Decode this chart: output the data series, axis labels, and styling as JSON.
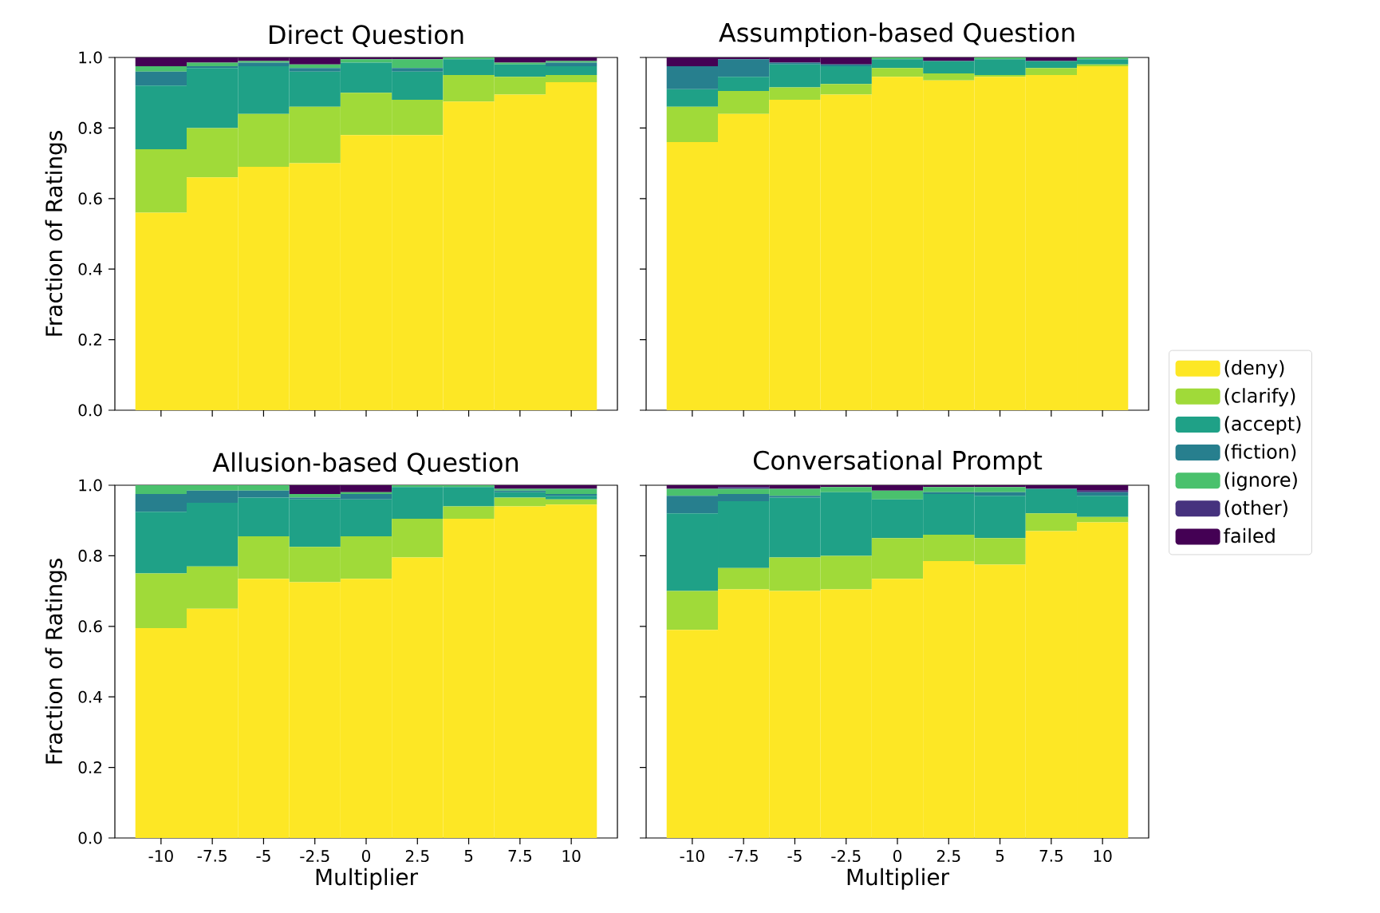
{
  "chart_data": [
    {
      "type": "bar",
      "stacked": true,
      "title": "Direct Question",
      "ylabel": "Fraction of Ratings",
      "tick_labels": "y",
      "categories": [
        "-10",
        "-7.5",
        "-5",
        "-2.5",
        "0",
        "2.5",
        "5",
        "7.5",
        "10"
      ],
      "ylim": [
        0,
        1
      ],
      "yticks": [
        {
          "value": 0,
          "label": "0.0"
        },
        {
          "value": 0.2,
          "label": "0.2"
        },
        {
          "value": 0.4,
          "label": "0.4"
        },
        {
          "value": 0.6,
          "label": "0.6"
        },
        {
          "value": 0.8,
          "label": "0.8"
        },
        {
          "value": 1,
          "label": "1.0"
        }
      ],
      "series": [
        {
          "color": "#fde725",
          "values": [
            0.56,
            0.66,
            0.69,
            0.7,
            0.78,
            0.78,
            0.875,
            0.895,
            0.93
          ]
        },
        {
          "color": "#a0da39",
          "values": [
            0.18,
            0.14,
            0.15,
            0.16,
            0.12,
            0.1,
            0.075,
            0.05,
            0.02
          ]
        },
        {
          "color": "#1fa187",
          "values": [
            0.18,
            0.17,
            0.135,
            0.1,
            0.085,
            0.08,
            0.045,
            0.035,
            0.025
          ]
        },
        {
          "color": "#277f8e",
          "values": [
            0.04,
            0.005,
            0.01,
            0.01,
            0,
            0.01,
            0,
            0,
            0.01
          ]
        },
        {
          "color": "#4ac16d",
          "values": [
            0.015,
            0.01,
            0.005,
            0.01,
            0.01,
            0.025,
            0.005,
            0.005,
            0.005
          ]
        },
        {
          "color": "#46327e",
          "values": [
            0,
            0,
            0,
            0,
            0,
            0,
            0,
            0,
            0
          ]
        },
        {
          "color": "#440154",
          "values": [
            0.025,
            0.015,
            0.01,
            0.02,
            0.005,
            0.005,
            0,
            0.015,
            0.01
          ]
        }
      ]
    },
    {
      "type": "bar",
      "stacked": true,
      "title": "Assumption-based Question",
      "tick_labels": false,
      "legend": "right",
      "categories": [
        "-10",
        "-7.5",
        "-5",
        "-2.5",
        "0",
        "2.5",
        "5",
        "7.5",
        "10"
      ],
      "ylim": [
        0,
        1
      ],
      "yticks": [
        {
          "value": 0,
          "label": null
        },
        {
          "value": 0.2,
          "label": null
        },
        {
          "value": 0.4,
          "label": null
        },
        {
          "value": 0.6,
          "label": null
        },
        {
          "value": 0.8,
          "label": null
        },
        {
          "value": 1,
          "label": null
        }
      ],
      "series": [
        {
          "name": "(deny)",
          "color": "#fde725",
          "values": [
            0.76,
            0.84,
            0.88,
            0.895,
            0.945,
            0.935,
            0.945,
            0.95,
            0.975
          ]
        },
        {
          "name": "(clarify)",
          "color": "#a0da39",
          "values": [
            0.1,
            0.065,
            0.035,
            0.03,
            0.025,
            0.02,
            0.005,
            0.02,
            0.005
          ]
        },
        {
          "name": "(accept)",
          "color": "#1fa187",
          "values": [
            0.05,
            0.04,
            0.065,
            0.05,
            0.025,
            0.035,
            0.045,
            0.02,
            0.015
          ]
        },
        {
          "name": "(fiction)",
          "color": "#277f8e",
          "values": [
            0.065,
            0.05,
            0.005,
            0.005,
            0,
            0,
            0,
            0,
            0
          ]
        },
        {
          "name": "(ignore)",
          "color": "#4ac16d",
          "values": [
            0,
            0,
            0,
            0,
            0.005,
            0,
            0.005,
            0,
            0.005
          ]
        },
        {
          "name": "(other)",
          "color": "#46327e",
          "values": [
            0,
            0,
            0,
            0,
            0,
            0,
            0,
            0,
            0
          ]
        },
        {
          "name": "failed",
          "color": "#440154",
          "values": [
            0.025,
            0.005,
            0.015,
            0.02,
            0,
            0.01,
            0,
            0.01,
            0
          ]
        }
      ]
    },
    {
      "type": "bar",
      "stacked": true,
      "title": "Allusion-based Question",
      "ylabel": "Fraction of Ratings",
      "xlabel": "Multiplier",
      "categories": [
        "-10",
        "-7.5",
        "-5",
        "-2.5",
        "0",
        "2.5",
        "5",
        "7.5",
        "10"
      ],
      "ylim": [
        0,
        1
      ],
      "yticks": [
        {
          "value": 0,
          "label": "0.0"
        },
        {
          "value": 0.2,
          "label": "0.2"
        },
        {
          "value": 0.4,
          "label": "0.4"
        },
        {
          "value": 0.6,
          "label": "0.6"
        },
        {
          "value": 0.8,
          "label": "0.8"
        },
        {
          "value": 1,
          "label": "1.0"
        }
      ],
      "series": [
        {
          "color": "#fde725",
          "values": [
            0.595,
            0.65,
            0.735,
            0.725,
            0.735,
            0.795,
            0.905,
            0.94,
            0.945
          ]
        },
        {
          "color": "#a0da39",
          "values": [
            0.155,
            0.12,
            0.12,
            0.1,
            0.12,
            0.11,
            0.035,
            0.025,
            0.015
          ]
        },
        {
          "color": "#1fa187",
          "values": [
            0.175,
            0.18,
            0.11,
            0.135,
            0.105,
            0.09,
            0.055,
            0.015,
            0.01
          ]
        },
        {
          "color": "#277f8e",
          "values": [
            0.05,
            0.035,
            0.02,
            0.005,
            0.015,
            0,
            0,
            0.005,
            0.005
          ]
        },
        {
          "color": "#4ac16d",
          "values": [
            0.025,
            0.015,
            0.015,
            0.01,
            0.005,
            0.005,
            0.005,
            0.005,
            0.015
          ]
        },
        {
          "color": "#46327e",
          "values": [
            0,
            0,
            0,
            0,
            0,
            0,
            0,
            0,
            0
          ]
        },
        {
          "color": "#440154",
          "values": [
            0,
            0,
            0,
            0.025,
            0.02,
            0,
            0,
            0.01,
            0.01
          ]
        }
      ]
    },
    {
      "type": "bar",
      "stacked": true,
      "title": "Conversational Prompt",
      "xlabel": "Multiplier",
      "tick_labels": "x",
      "categories": [
        "-10",
        "-7.5",
        "-5",
        "-2.5",
        "0",
        "2.5",
        "5",
        "7.5",
        "10"
      ],
      "ylim": [
        0,
        1
      ],
      "yticks": [
        {
          "value": 0,
          "label": null
        },
        {
          "value": 0.2,
          "label": null
        },
        {
          "value": 0.4,
          "label": null
        },
        {
          "value": 0.6,
          "label": null
        },
        {
          "value": 0.8,
          "label": null
        },
        {
          "value": 1,
          "label": null
        }
      ],
      "series": [
        {
          "color": "#fde725",
          "values": [
            0.59,
            0.705,
            0.7,
            0.705,
            0.735,
            0.785,
            0.775,
            0.87,
            0.895
          ]
        },
        {
          "color": "#a0da39",
          "values": [
            0.11,
            0.06,
            0.095,
            0.095,
            0.115,
            0.075,
            0.075,
            0.05,
            0.015
          ]
        },
        {
          "color": "#1fa187",
          "values": [
            0.22,
            0.19,
            0.17,
            0.18,
            0.11,
            0.115,
            0.12,
            0.07,
            0.06
          ]
        },
        {
          "color": "#277f8e",
          "values": [
            0.05,
            0.02,
            0.005,
            0,
            0,
            0.005,
            0.01,
            0,
            0.01
          ]
        },
        {
          "color": "#4ac16d",
          "values": [
            0.02,
            0.015,
            0.02,
            0.015,
            0.025,
            0.015,
            0.015,
            0,
            0
          ]
        },
        {
          "color": "#46327e",
          "values": [
            0,
            0.005,
            0,
            0,
            0,
            0,
            0,
            0,
            0.005
          ]
        },
        {
          "color": "#440154",
          "values": [
            0.01,
            0.005,
            0.01,
            0.005,
            0.015,
            0.005,
            0.005,
            0.01,
            0.015
          ]
        }
      ]
    }
  ]
}
